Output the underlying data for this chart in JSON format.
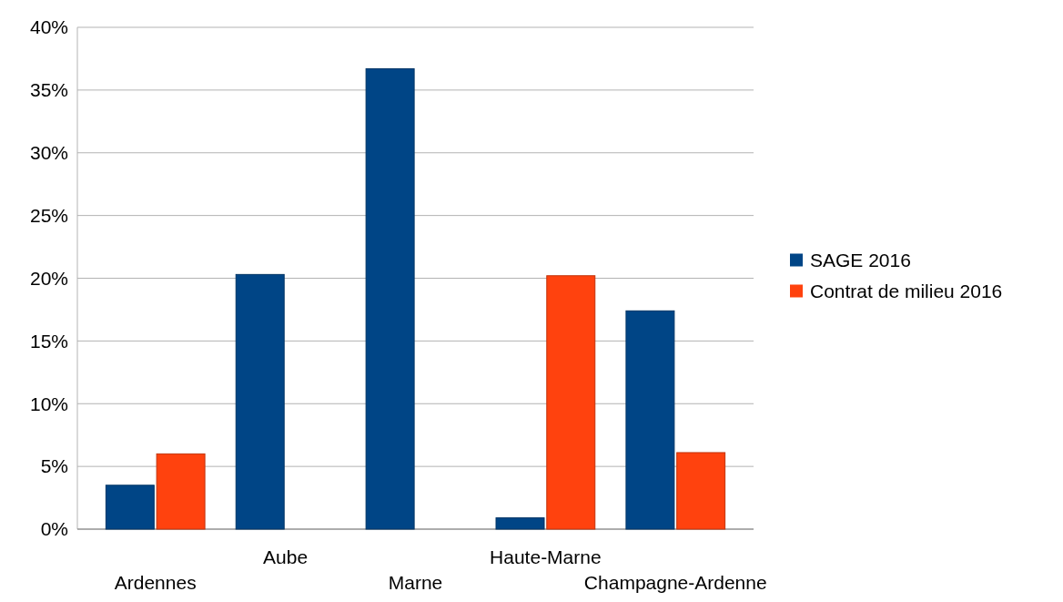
{
  "chart_data": {
    "type": "bar",
    "categories": [
      "Ardennes",
      "Aube",
      "Marne",
      "Haute-Marne",
      "Champagne-Ardenne"
    ],
    "series": [
      {
        "name": "SAGE 2016",
        "color": "#004586",
        "values": [
          3.5,
          20.3,
          36.7,
          0.9,
          17.4
        ]
      },
      {
        "name": "Contrat de milieu 2016",
        "color": "#ff420e",
        "values": [
          6,
          null,
          null,
          20.2,
          6.1
        ]
      }
    ],
    "ylim": [
      0,
      40
    ],
    "yticks": [
      {
        "value": 0,
        "label": "0%"
      },
      {
        "value": 5,
        "label": "5%"
      },
      {
        "value": 10,
        "label": "10%"
      },
      {
        "value": 15,
        "label": "15%"
      },
      {
        "value": 20,
        "label": "20%"
      },
      {
        "value": 25,
        "label": "25%"
      },
      {
        "value": 30,
        "label": "30%"
      },
      {
        "value": 35,
        "label": "35%"
      },
      {
        "value": 40,
        "label": "40%"
      }
    ],
    "grid": "y",
    "legend": "right"
  }
}
